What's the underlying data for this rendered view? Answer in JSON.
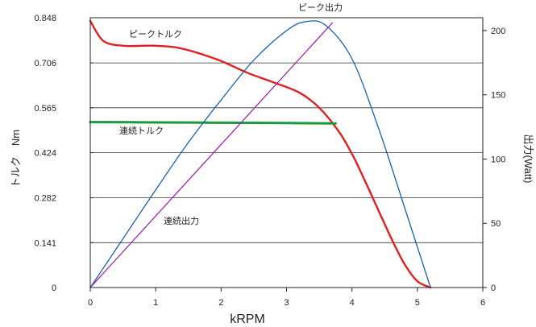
{
  "chart_data": {
    "type": "line",
    "title": "",
    "xlabel": "kRPM",
    "ylabel_left": "トルク　Nm",
    "ylabel_right": "出力(Watt)",
    "xlim": [
      0,
      6
    ],
    "ylim_left": [
      0,
      0.848
    ],
    "ylim_right": [
      0,
      210
    ],
    "x_ticks": [
      "0",
      "1",
      "2",
      "3",
      "4",
      "5",
      "6"
    ],
    "y_left_ticks": [
      "0",
      "0.141",
      "0.282",
      "0.424",
      "0.565",
      "0.706",
      "0.848"
    ],
    "y_right_ticks": [
      "0",
      "50",
      "100",
      "150",
      "200"
    ],
    "grid": true,
    "series": [
      {
        "name": "ピークトルク",
        "axis": "left",
        "color": "#e02020",
        "x": [
          0,
          0.2,
          0.5,
          0.8,
          1.0,
          1.3,
          1.6,
          2.0,
          2.4,
          2.8,
          3.2,
          3.5,
          3.8,
          4.0,
          4.2,
          4.4,
          4.6,
          4.8,
          5.0,
          5.2
        ],
        "y": [
          0.838,
          0.775,
          0.76,
          0.76,
          0.76,
          0.755,
          0.74,
          0.712,
          0.675,
          0.645,
          0.612,
          0.565,
          0.49,
          0.42,
          0.335,
          0.245,
          0.155,
          0.075,
          0.02,
          0
        ]
      },
      {
        "name": "連続トルク",
        "axis": "left",
        "color": "#1a9a3a",
        "x": [
          0,
          1,
          2,
          3,
          3.75
        ],
        "y": [
          0.52,
          0.519,
          0.518,
          0.517,
          0.516
        ]
      },
      {
        "name": "ピーク出力",
        "axis": "right",
        "color": "#1a60b0",
        "x": [
          0,
          0.5,
          1.0,
          1.5,
          2.0,
          2.5,
          3.0,
          3.3,
          3.6,
          4.0,
          4.4,
          4.8,
          5.2
        ],
        "y": [
          0,
          38,
          76,
          113,
          146,
          177,
          200,
          207,
          204,
          178,
          125,
          63,
          0
        ]
      },
      {
        "name": "連続出力",
        "axis": "right",
        "color": "#9b2aa8",
        "x": [
          0,
          3.7
        ],
        "y": [
          0,
          206
        ]
      }
    ],
    "annotations": [
      {
        "text": "ピーク出力",
        "series": "ピーク出力"
      },
      {
        "text": "ピークトルク",
        "series": "ピークトルク"
      },
      {
        "text": "連続トルク",
        "series": "連続トルク"
      },
      {
        "text": "連続出力",
        "series": "連続出力"
      }
    ]
  }
}
